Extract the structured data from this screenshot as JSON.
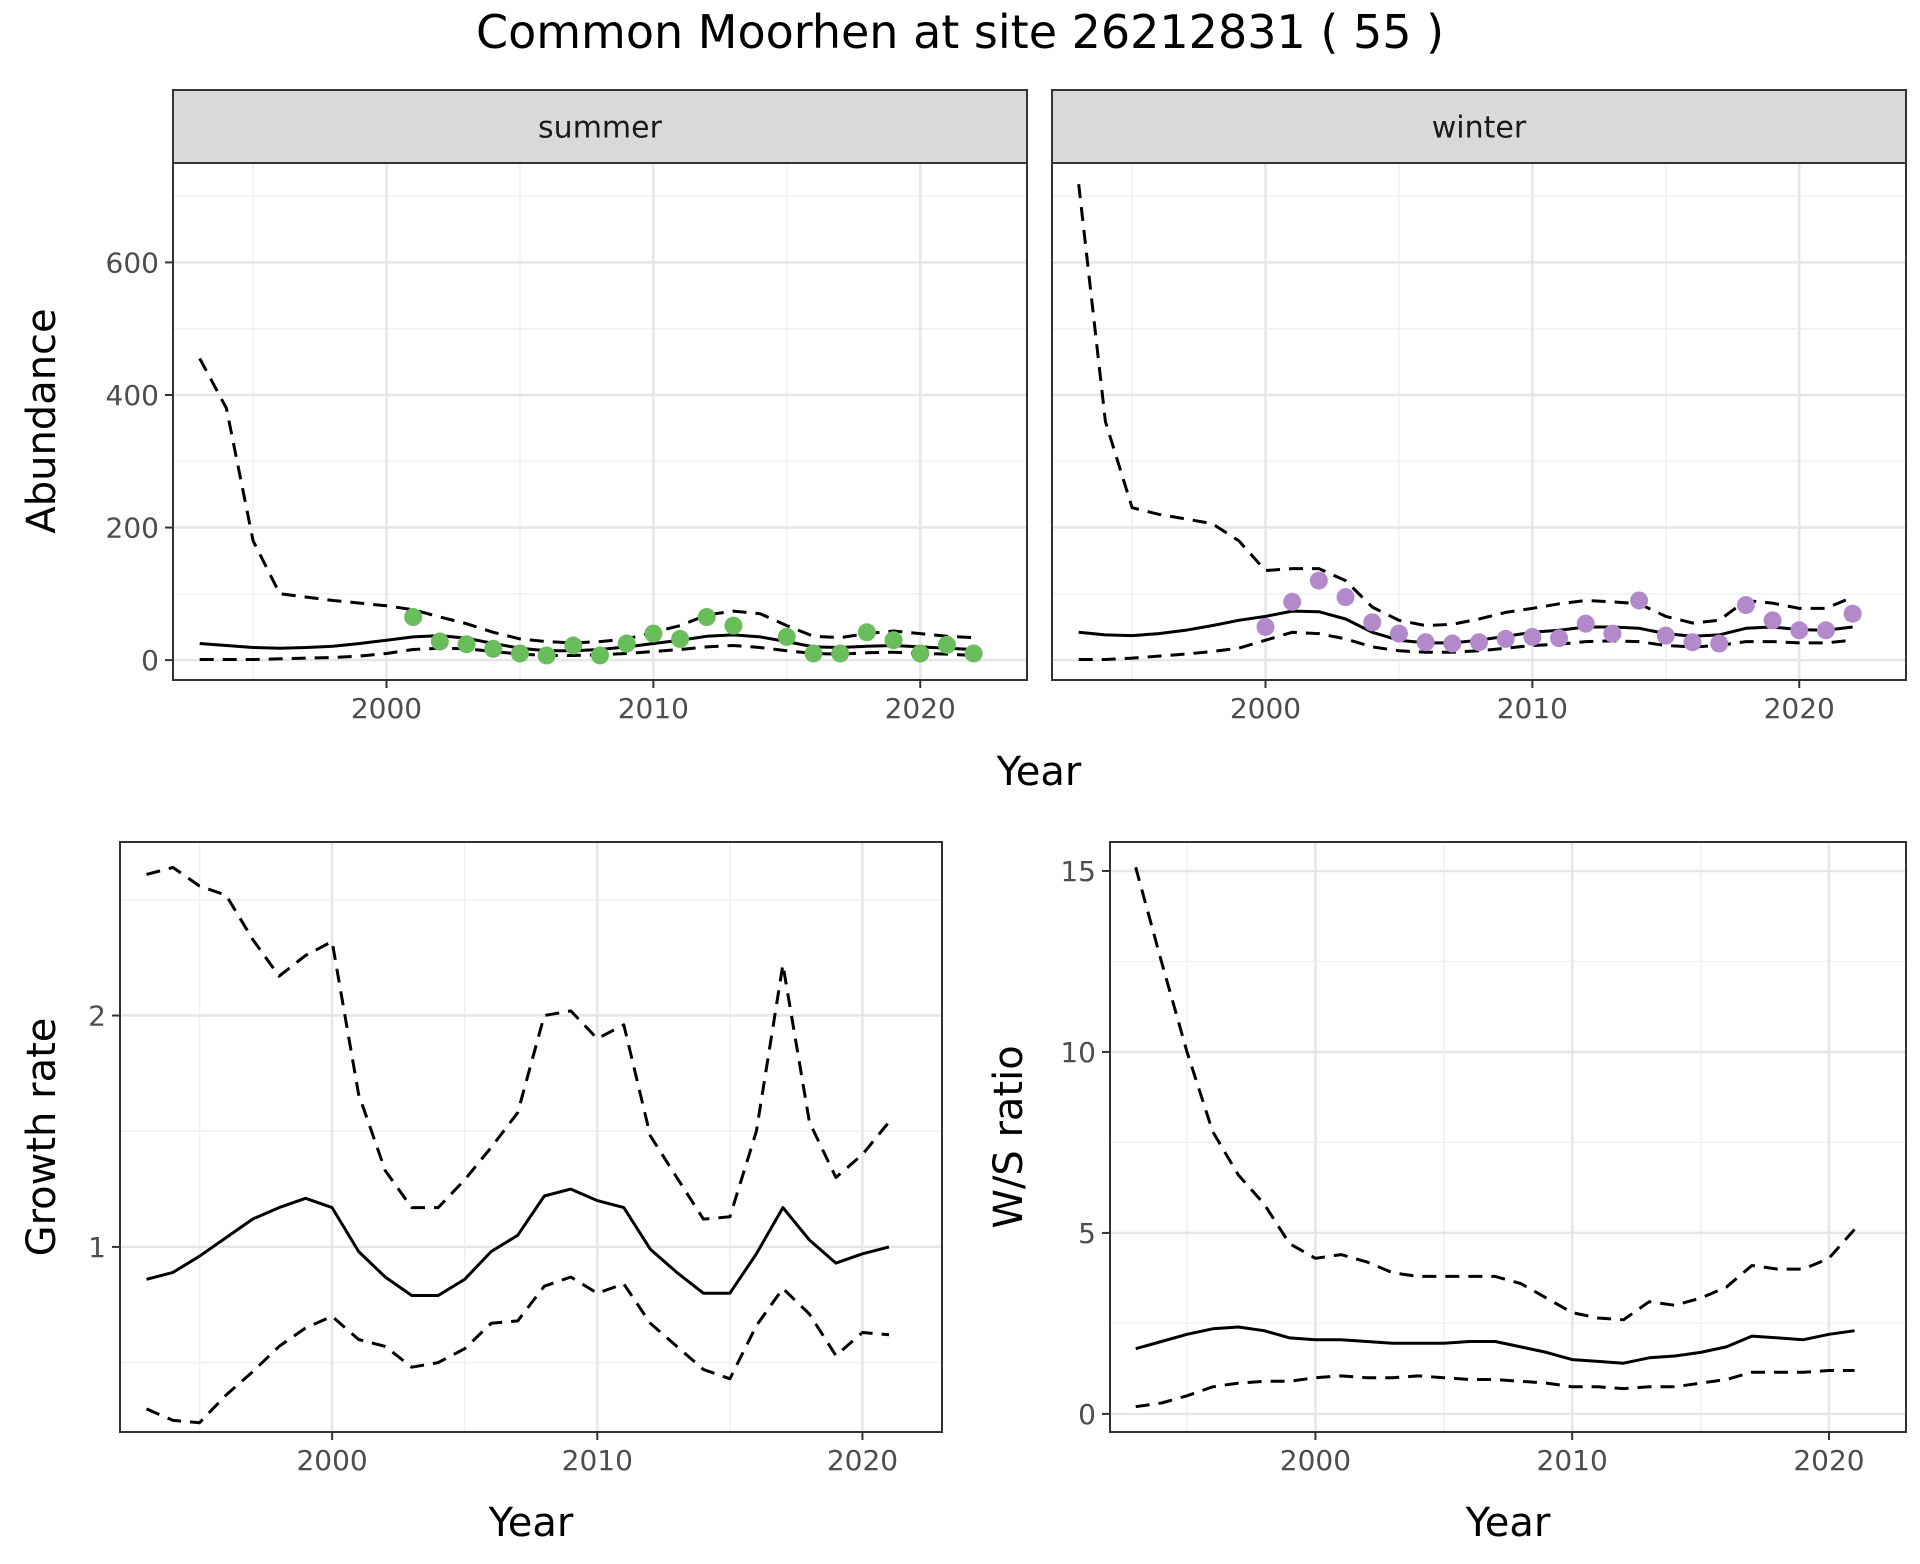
{
  "title": "Common Moorhen at site 26212831 ( 55 )",
  "colors": {
    "summer_points": "#6ABD5B",
    "winter_points": "#B28ACC"
  },
  "chart_data": [
    {
      "type": "line",
      "panel": "abundance",
      "facets": [
        "summer",
        "winter"
      ],
      "ylabel": "Abundance",
      "xlabel": "Year",
      "xlim": [
        1992,
        2024
      ],
      "ylim": [
        -30,
        750
      ],
      "xticks": [
        2000,
        2010,
        2020
      ],
      "yticks": [
        0,
        200,
        400,
        600
      ],
      "grid": true,
      "series": [
        {
          "facet": "summer",
          "x": [
            1993,
            1994,
            1995,
            1996,
            1997,
            1998,
            1999,
            2000,
            2001,
            2002,
            2003,
            2004,
            2005,
            2006,
            2007,
            2008,
            2009,
            2010,
            2011,
            2012,
            2013,
            2014,
            2015,
            2016,
            2017,
            2018,
            2019,
            2020,
            2021,
            2022
          ],
          "fit": [
            25,
            22,
            19,
            18,
            19,
            21,
            25,
            30,
            35,
            37,
            33,
            25,
            18,
            14,
            14,
            16,
            20,
            25,
            30,
            36,
            38,
            35,
            28,
            20,
            19,
            21,
            22,
            20,
            18,
            16
          ],
          "upper": [
            455,
            380,
            180,
            100,
            95,
            90,
            86,
            82,
            76,
            65,
            55,
            42,
            32,
            28,
            26,
            28,
            32,
            42,
            52,
            68,
            74,
            70,
            52,
            36,
            34,
            40,
            44,
            40,
            36,
            34
          ],
          "lower": [
            1,
            1,
            1,
            2,
            3,
            4,
            6,
            10,
            16,
            18,
            17,
            13,
            9,
            7,
            7,
            8,
            10,
            13,
            16,
            20,
            22,
            19,
            14,
            10,
            9,
            11,
            12,
            10,
            9,
            7
          ],
          "points_x": [
            2001,
            2002,
            2003,
            2004,
            2005,
            2006,
            2007,
            2008,
            2009,
            2010,
            2011,
            2012,
            2013,
            2014,
            2015,
            2016,
            2017,
            2018,
            2019,
            2020,
            2021,
            2022
          ],
          "points_y": [
            65,
            28,
            24,
            17,
            10,
            7,
            22,
            7,
            25,
            40,
            32,
            65,
            52,
            null,
            35,
            10,
            10,
            42,
            30,
            10,
            23,
            10
          ]
        },
        {
          "facet": "winter",
          "x": [
            1993,
            1994,
            1995,
            1996,
            1997,
            1998,
            1999,
            2000,
            2001,
            2002,
            2003,
            2004,
            2005,
            2006,
            2007,
            2008,
            2009,
            2010,
            2011,
            2012,
            2013,
            2014,
            2015,
            2016,
            2017,
            2018,
            2019,
            2020,
            2021,
            2022
          ],
          "fit": [
            42,
            38,
            37,
            40,
            45,
            52,
            60,
            66,
            74,
            73,
            62,
            42,
            30,
            26,
            26,
            30,
            36,
            42,
            45,
            50,
            50,
            48,
            40,
            36,
            38,
            48,
            50,
            46,
            45,
            50
          ],
          "upper": [
            718,
            360,
            230,
            220,
            213,
            206,
            180,
            135,
            138,
            138,
            120,
            80,
            60,
            52,
            54,
            62,
            72,
            78,
            85,
            90,
            88,
            85,
            66,
            56,
            60,
            90,
            86,
            78,
            78,
            95
          ],
          "lower": [
            1,
            1,
            3,
            6,
            9,
            13,
            18,
            30,
            42,
            40,
            32,
            20,
            14,
            12,
            12,
            14,
            18,
            22,
            24,
            28,
            29,
            28,
            22,
            20,
            22,
            28,
            28,
            26,
            26,
            30
          ],
          "points_x": [
            2000,
            2001,
            2002,
            2003,
            2004,
            2005,
            2006,
            2007,
            2008,
            2009,
            2010,
            2011,
            2012,
            2013,
            2014,
            2015,
            2016,
            2017,
            2018,
            2019,
            2020,
            2021,
            2022
          ],
          "points_y": [
            50,
            88,
            120,
            95,
            57,
            40,
            27,
            25,
            27,
            32,
            35,
            33,
            55,
            40,
            90,
            37,
            27,
            25,
            83,
            60,
            45,
            45,
            70
          ]
        }
      ]
    },
    {
      "type": "line",
      "panel": "growth",
      "ylabel": "Growth rate",
      "xlabel": "Year",
      "xlim": [
        1992,
        2023
      ],
      "ylim": [
        0.2,
        2.75
      ],
      "xticks": [
        2000,
        2010,
        2020
      ],
      "yticks": [
        1,
        2
      ],
      "grid": true,
      "x": [
        1993,
        1994,
        1995,
        1996,
        1997,
        1998,
        1999,
        2000,
        2001,
        2002,
        2003,
        2004,
        2005,
        2006,
        2007,
        2008,
        2009,
        2010,
        2011,
        2012,
        2013,
        2014,
        2015,
        2016,
        2017,
        2018,
        2019,
        2020,
        2021
      ],
      "fit": [
        0.86,
        0.89,
        0.96,
        1.04,
        1.12,
        1.17,
        1.21,
        1.17,
        0.98,
        0.87,
        0.79,
        0.79,
        0.86,
        0.98,
        1.05,
        1.22,
        1.25,
        1.2,
        1.17,
        0.99,
        0.89,
        0.8,
        0.8,
        0.97,
        1.17,
        1.03,
        0.93,
        0.97,
        1.0
      ],
      "upper": [
        2.61,
        2.64,
        2.56,
        2.52,
        2.33,
        2.17,
        2.26,
        2.32,
        1.66,
        1.33,
        1.17,
        1.17,
        1.29,
        1.43,
        1.58,
        2.0,
        2.02,
        1.9,
        1.96,
        1.48,
        1.3,
        1.12,
        1.13,
        1.5,
        2.22,
        1.54,
        1.3,
        1.4,
        1.54
      ],
      "lower": [
        0.3,
        0.25,
        0.24,
        0.36,
        0.46,
        0.57,
        0.65,
        0.7,
        0.6,
        0.57,
        0.48,
        0.5,
        0.56,
        0.67,
        0.68,
        0.83,
        0.87,
        0.8,
        0.84,
        0.67,
        0.57,
        0.47,
        0.43,
        0.66,
        0.82,
        0.71,
        0.53,
        0.63,
        0.62
      ]
    },
    {
      "type": "line",
      "panel": "ratio",
      "ylabel": "W/S ratio",
      "xlabel": "Year",
      "xlim": [
        1992,
        2023
      ],
      "ylim": [
        -0.5,
        15.8
      ],
      "xticks": [
        2000,
        2010,
        2020
      ],
      "yticks": [
        0,
        5,
        10,
        15
      ],
      "grid": true,
      "x": [
        1993,
        1994,
        1995,
        1996,
        1997,
        1998,
        1999,
        2000,
        2001,
        2002,
        2003,
        2004,
        2005,
        2006,
        2007,
        2008,
        2009,
        2010,
        2011,
        2012,
        2013,
        2014,
        2015,
        2016,
        2017,
        2018,
        2019,
        2020,
        2021
      ],
      "fit": [
        1.8,
        2.0,
        2.2,
        2.35,
        2.4,
        2.3,
        2.1,
        2.05,
        2.05,
        2.0,
        1.95,
        1.95,
        1.95,
        2.0,
        2.0,
        1.85,
        1.7,
        1.5,
        1.45,
        1.4,
        1.55,
        1.6,
        1.7,
        1.85,
        2.15,
        2.1,
        2.05,
        2.2,
        2.3
      ],
      "upper": [
        15.1,
        12.5,
        10.0,
        7.8,
        6.6,
        5.8,
        4.7,
        4.3,
        4.4,
        4.2,
        3.9,
        3.8,
        3.8,
        3.8,
        3.8,
        3.6,
        3.2,
        2.8,
        2.65,
        2.6,
        3.1,
        3.0,
        3.2,
        3.5,
        4.1,
        4.0,
        4.0,
        4.3,
        5.1
      ],
      "lower": [
        0.2,
        0.3,
        0.5,
        0.75,
        0.85,
        0.9,
        0.9,
        1.0,
        1.05,
        1.0,
        1.0,
        1.05,
        1.0,
        0.95,
        0.95,
        0.9,
        0.85,
        0.75,
        0.75,
        0.7,
        0.75,
        0.75,
        0.85,
        0.95,
        1.15,
        1.15,
        1.15,
        1.2,
        1.2
      ]
    }
  ]
}
